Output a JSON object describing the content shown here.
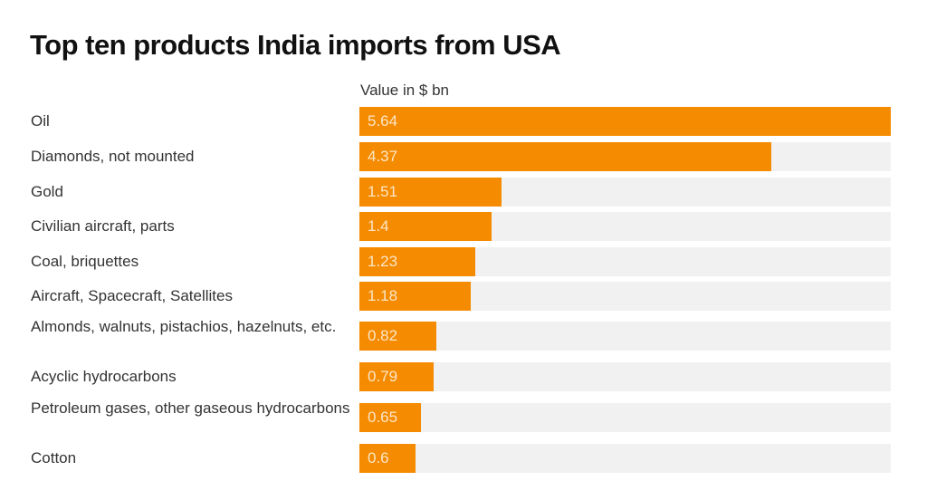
{
  "chart_data": {
    "type": "bar",
    "orientation": "horizontal",
    "title": "Top ten products India imports from USA",
    "subtitle": "Value in $ bn",
    "xlabel": "",
    "ylabel": "",
    "xlim": [
      0,
      5.64
    ],
    "grid": false,
    "bar_color": "#f58b00",
    "track_color": "#f1f1f1",
    "categories": [
      "Oil",
      "Diamonds, not mounted",
      "Gold",
      "Civilian aircraft, parts",
      "Coal, briquettes",
      "Aircraft, Spacecraft, Satellites",
      "Almonds, walnuts, pistachios, hazelnuts, etc.",
      "Acyclic hydrocarbons",
      "Petroleum gases, other gaseous hydrocarbons",
      "Cotton"
    ],
    "values": [
      5.64,
      4.37,
      1.51,
      1.4,
      1.23,
      1.18,
      0.82,
      0.79,
      0.65,
      0.6
    ],
    "value_labels": [
      "5.64",
      "4.37",
      "1.51",
      "1.4",
      "1.23",
      "1.18",
      "0.82",
      "0.79",
      "0.65",
      "0.6"
    ]
  }
}
